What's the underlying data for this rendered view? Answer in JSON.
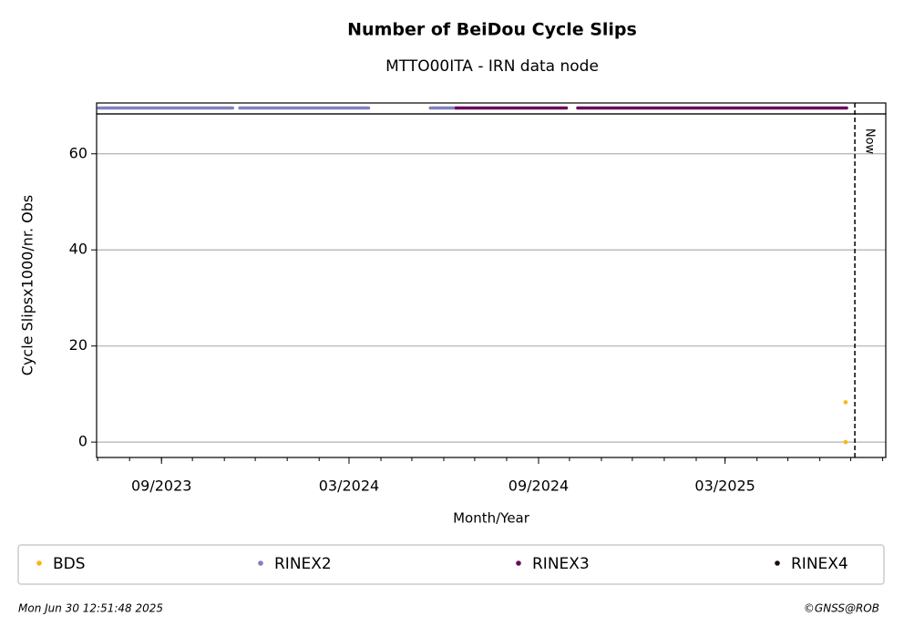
{
  "chart_data": {
    "type": "scatter",
    "title": "Number of BeiDou Cycle Slips",
    "subtitle": "MTTO00ITA - IRN data node",
    "xlabel": "Month/Year",
    "ylabel": "Cycle Slipsx1000/nr. Obs",
    "xlim": [
      "2023-06-30",
      "2025-08-04"
    ],
    "xticks": [
      {
        "value": "2023-09-01",
        "label": "09/2023"
      },
      {
        "value": "2024-03-01",
        "label": "03/2024"
      },
      {
        "value": "2024-09-01",
        "label": "09/2024"
      },
      {
        "value": "2025-03-01",
        "label": "03/2025"
      }
    ],
    "ylim": [
      -3.2,
      68.3
    ],
    "yticks": [
      0,
      20,
      40,
      60
    ],
    "grid": true,
    "now": {
      "x": "2025-07-05",
      "label": "Now"
    },
    "series": [
      {
        "name": "BDS",
        "color": "#fbb613",
        "x": [
          "2025-06-26",
          "2025-06-26"
        ],
        "values": [
          8.3,
          0
        ]
      },
      {
        "name": "RINEX2",
        "color": "#8080c0",
        "periods": [
          [
            "2023-07-02",
            "2023-11-09"
          ],
          [
            "2023-11-16",
            "2024-03-20"
          ],
          [
            "2024-05-19",
            "2024-06-13"
          ]
        ]
      },
      {
        "name": "RINEX3",
        "color": "#6a0a5c",
        "periods": [
          [
            "2024-06-13",
            "2024-09-28"
          ],
          [
            "2024-10-09",
            "2025-06-27"
          ]
        ]
      },
      {
        "name": "RINEX4",
        "color": "#1c0a1c",
        "periods": []
      }
    ],
    "timestamp": "Mon Jun 30 12:51:48 2025",
    "credit": "©GNSS@ROB"
  }
}
